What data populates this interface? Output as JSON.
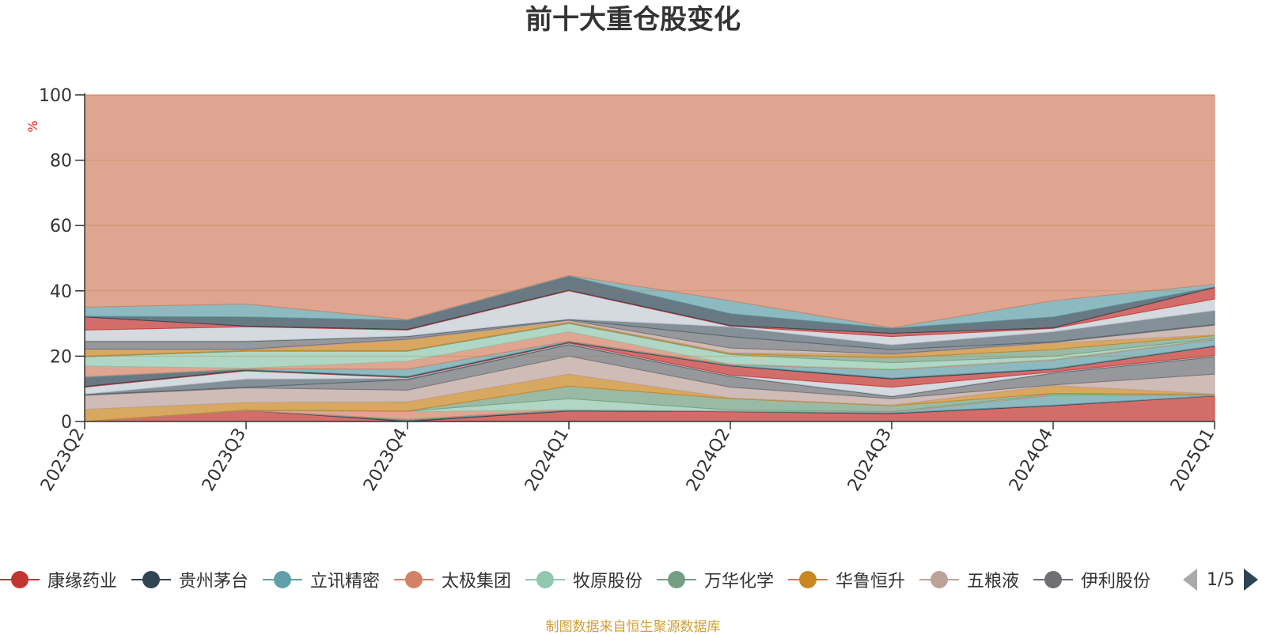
{
  "title": "前十大重仓股变化",
  "source_note": "制图数据来自恒生聚源数据库",
  "legend": {
    "items": [
      {
        "label": "康缘药业",
        "color": "#c23531"
      },
      {
        "label": "贵州茅台",
        "color": "#2f4554"
      },
      {
        "label": "立讯精密",
        "color": "#61a0a8"
      },
      {
        "label": "太极集团",
        "color": "#d48265"
      },
      {
        "label": "牧原股份",
        "color": "#91c7ae"
      },
      {
        "label": "万华化学",
        "color": "#749f83"
      },
      {
        "label": "华鲁恒升",
        "color": "#ca8622"
      },
      {
        "label": "五粮液",
        "color": "#bda29a"
      },
      {
        "label": "伊利股份",
        "color": "#6e7074"
      }
    ],
    "page_label": "1/5"
  },
  "chart_data": {
    "type": "area",
    "stacked": true,
    "ylabel": "%",
    "ylim": [
      0,
      100
    ],
    "yticks": [
      0,
      20,
      40,
      60,
      80,
      100
    ],
    "grid": true,
    "legend_position": "bottom",
    "x": [
      "2023Q2",
      "2023Q3",
      "2023Q4",
      "2024Q1",
      "2024Q2",
      "2024Q3",
      "2024Q4",
      "2025Q1"
    ],
    "palette": [
      "#c23531",
      "#2f4554",
      "#61a0a8",
      "#d48265",
      "#91c7ae",
      "#749f83",
      "#ca8622",
      "#bda29a",
      "#6e7074",
      "#546570",
      "#c4ccd3"
    ],
    "layers": [
      {
        "cum": [
          0.0,
          3.4,
          0.0,
          3.2,
          3.0,
          2.4,
          4.8,
          7.8
        ]
      },
      {
        "cum": [
          0.0,
          3.4,
          0.4,
          3.4,
          3.1,
          2.6,
          5.0,
          7.9
        ]
      },
      {
        "cum": [
          0.0,
          3.4,
          0.6,
          3.6,
          3.2,
          2.8,
          8.0,
          8.0
        ]
      },
      {
        "cum": [
          0.0,
          3.4,
          3.0,
          3.6,
          3.3,
          2.9,
          8.2,
          8.1
        ]
      },
      {
        "cum": [
          0.0,
          3.4,
          3.1,
          7.0,
          3.5,
          3.0,
          8.4,
          8.2
        ]
      },
      {
        "cum": [
          0.0,
          3.5,
          3.2,
          10.8,
          7.0,
          4.8,
          8.6,
          8.3
        ]
      },
      {
        "cum": [
          3.7,
          5.8,
          6.0,
          14.5,
          7.2,
          5.0,
          11.0,
          8.4
        ]
      },
      {
        "cum": [
          8.0,
          10.3,
          9.6,
          20.0,
          10.5,
          7.0,
          11.2,
          14.5
        ]
      },
      {
        "cum": [
          8.2,
          10.5,
          12.8,
          23.5,
          13.8,
          7.6,
          14.8,
          19.8
        ]
      },
      {
        "cum": [
          8.4,
          13.0,
          13.2,
          23.8,
          14.0,
          7.8,
          15.0,
          20.0
        ]
      },
      {
        "cum": [
          10.5,
          15.5,
          13.4,
          24.0,
          14.2,
          10.5,
          15.2,
          20.2
        ]
      },
      {
        "cum": [
          10.7,
          15.7,
          13.6,
          24.2,
          17.0,
          13.0,
          16.0,
          23.0
        ]
      },
      {
        "cum": [
          13.5,
          15.9,
          13.8,
          24.4,
          17.2,
          13.3,
          16.2,
          23.2
        ]
      },
      {
        "cum": [
          13.7,
          16.1,
          16.0,
          24.6,
          17.4,
          15.8,
          18.8,
          25.0
        ]
      },
      {
        "cum": [
          17.0,
          16.3,
          18.5,
          27.5,
          17.6,
          16.0,
          19.0,
          25.2
        ]
      },
      {
        "cum": [
          19.8,
          21.5,
          21.5,
          30.0,
          20.5,
          18.0,
          20.0,
          25.4
        ]
      },
      {
        "cum": [
          20.0,
          21.7,
          21.7,
          30.2,
          20.7,
          19.5,
          22.0,
          26.3
        ]
      },
      {
        "cum": [
          22.0,
          21.9,
          25.0,
          30.5,
          21.0,
          20.5,
          24.0,
          26.5
        ]
      },
      {
        "cum": [
          22.2,
          22.1,
          25.2,
          31.0,
          22.5,
          20.7,
          24.2,
          29.5
        ]
      },
      {
        "cum": [
          24.5,
          24.5,
          26.0,
          31.2,
          26.0,
          22.0,
          24.4,
          29.7
        ]
      },
      {
        "cum": [
          24.7,
          24.7,
          26.2,
          31.4,
          29.0,
          23.5,
          27.5,
          34.0
        ]
      },
      {
        "cum": [
          28.0,
          29.0,
          28.0,
          40.0,
          29.2,
          26.0,
          28.5,
          37.5
        ]
      },
      {
        "cum": [
          32.0,
          29.2,
          28.2,
          40.2,
          29.4,
          27.0,
          28.7,
          41.0
        ]
      },
      {
        "cum": [
          32.2,
          32.0,
          31.0,
          44.5,
          33.0,
          28.5,
          32.0,
          41.2
        ]
      },
      {
        "cum": [
          35.0,
          36.0,
          31.2,
          44.7,
          37.0,
          28.7,
          37.0,
          42.0
        ]
      },
      {
        "cum": [
          100,
          100,
          100,
          100,
          100,
          100,
          100,
          100
        ]
      }
    ]
  }
}
